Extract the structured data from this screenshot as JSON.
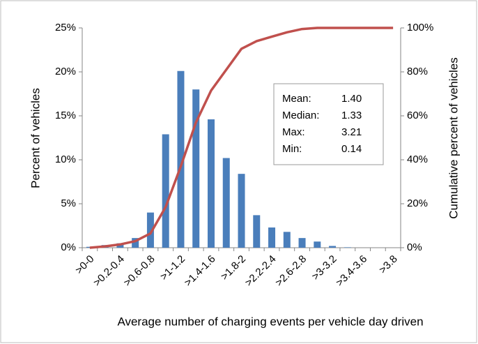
{
  "chart_data": {
    "type": "combo",
    "x_label": "Average number of charging events per vehicle day driven",
    "y_label": "Percent of vehicles",
    "y2_label": "Cumulative percent of vehicles",
    "categories": [
      ">0-0",
      null,
      ">0.2-0.4",
      null,
      ">0.6-0.8",
      null,
      ">1-1.2",
      null,
      ">1.4-1.6",
      null,
      ">1.8-2",
      null,
      ">2.2-2.4",
      null,
      ">2.6-2.8",
      null,
      ">3-3.2",
      null,
      ">3.4-3.6",
      null,
      ">3.8"
    ],
    "series": [
      {
        "type": "bar",
        "color": "#4a7ebb",
        "values": [
          0.1,
          0.3,
          0.5,
          1.1,
          4.0,
          12.9,
          20.1,
          18.0,
          14.6,
          10.2,
          8.4,
          3.7,
          2.3,
          1.8,
          1.1,
          0.7,
          0.2,
          0.05,
          0,
          0,
          0
        ]
      },
      {
        "type": "line",
        "color": "#c0504d",
        "axis": "y2",
        "values": [
          0,
          0.6,
          1.5,
          3,
          6.5,
          18.5,
          37,
          57,
          71.5,
          81,
          90.5,
          94,
          96,
          98,
          99.5,
          100,
          100,
          100,
          100,
          100,
          100
        ]
      }
    ],
    "ylim": [
      0,
      25
    ],
    "yticks": [
      {
        "value": 0,
        "label": "0%"
      },
      {
        "value": 5,
        "label": "5%"
      },
      {
        "value": 10,
        "label": "10%"
      },
      {
        "value": 15,
        "label": "15%"
      },
      {
        "value": 20,
        "label": "20%"
      },
      {
        "value": 25,
        "label": "25%"
      }
    ],
    "y2lim": [
      0,
      100
    ],
    "y2ticks": [
      {
        "value": 0,
        "label": "0%"
      },
      {
        "value": 20,
        "label": "20%"
      },
      {
        "value": 40,
        "label": "40%"
      },
      {
        "value": 60,
        "label": "60%"
      },
      {
        "value": 80,
        "label": "80%"
      },
      {
        "value": 100,
        "label": "100%"
      }
    ],
    "annotations": [
      [
        "Mean:",
        "1.40"
      ],
      [
        "Median:",
        "1.33"
      ],
      [
        "Max:",
        "3.21"
      ],
      [
        "Min:",
        "0.14"
      ]
    ]
  }
}
